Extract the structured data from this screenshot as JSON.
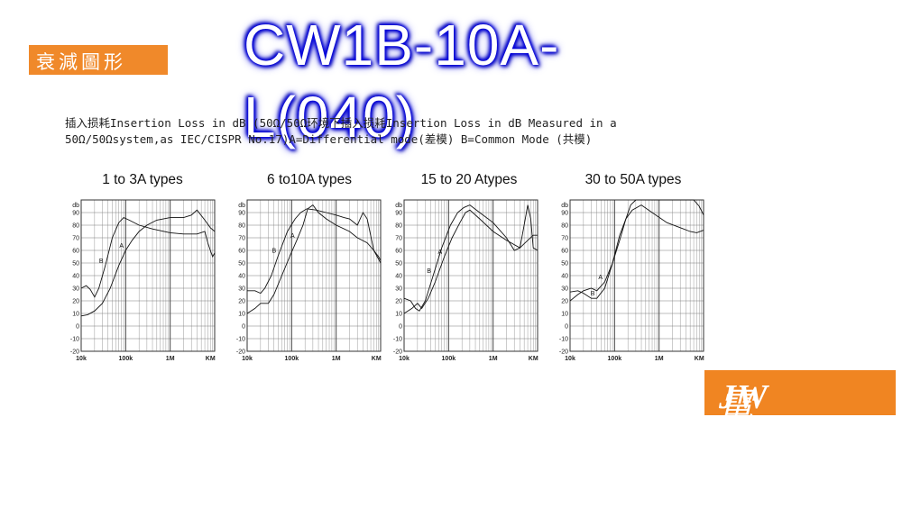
{
  "badge": {
    "label": "衰減圖形"
  },
  "header": {
    "title": "CW1B-10A-L(040)"
  },
  "description": {
    "line1": "插入损耗Insertion Loss in dB (50Ω/50Ω环境下插入损耗Insertion Loss in dB Measured in a",
    "line2": "50Ω/50Ωsystem,as IEC/CISPR No.17)A=Differential mode(差模) B=Common Mode (共模)"
  },
  "logo": {
    "brand": "JW",
    "text": "電世界"
  },
  "colors": {
    "badge": "#f0892a",
    "title_glow": "#0000ff",
    "logo_bg": "#f08522"
  },
  "axis": {
    "y_unit": "db",
    "y_ticks": [
      90,
      80,
      70,
      60,
      50,
      40,
      30,
      20,
      10,
      0,
      -10,
      -20
    ],
    "x_ticks": [
      "10k",
      "100k",
      "1M",
      "KM"
    ]
  },
  "chart_data": [
    {
      "type": "line",
      "title": "1 to 3A types",
      "ylabel": "db",
      "ylim": [
        -20,
        100
      ],
      "x_scale": "log",
      "series": [
        {
          "name": "A",
          "color": "#111111",
          "points": [
            [
              10000,
              8
            ],
            [
              14000,
              9
            ],
            [
              20000,
              12
            ],
            [
              30000,
              18
            ],
            [
              45000,
              30
            ],
            [
              70000,
              48
            ],
            [
              100000,
              60
            ],
            [
              140000,
              68
            ],
            [
              200000,
              75
            ],
            [
              300000,
              80
            ],
            [
              500000,
              84
            ],
            [
              1000000,
              86
            ],
            [
              2000000,
              86
            ],
            [
              3000000,
              88
            ],
            [
              4000000,
              92
            ],
            [
              6000000,
              84
            ],
            [
              8000000,
              78
            ],
            [
              10000000,
              75
            ]
          ]
        },
        {
          "name": "B",
          "color": "#111111",
          "points": [
            [
              10000,
              30
            ],
            [
              13000,
              32
            ],
            [
              16000,
              29
            ],
            [
              20000,
              23
            ],
            [
              25000,
              30
            ],
            [
              35000,
              48
            ],
            [
              50000,
              70
            ],
            [
              70000,
              82
            ],
            [
              90000,
              86
            ],
            [
              120000,
              84
            ],
            [
              200000,
              80
            ],
            [
              400000,
              77
            ],
            [
              1000000,
              74
            ],
            [
              2000000,
              73
            ],
            [
              4000000,
              73
            ],
            [
              6000000,
              75
            ],
            [
              7000000,
              66
            ],
            [
              8000000,
              60
            ],
            [
              9000000,
              55
            ],
            [
              10000000,
              58
            ]
          ]
        }
      ]
    },
    {
      "type": "line",
      "title": "6 to10A types",
      "ylabel": "db",
      "ylim": [
        -20,
        100
      ],
      "x_scale": "log",
      "series": [
        {
          "name": "A",
          "color": "#111111",
          "points": [
            [
              10000,
              10
            ],
            [
              15000,
              14
            ],
            [
              20000,
              18
            ],
            [
              30000,
              18
            ],
            [
              40000,
              25
            ],
            [
              60000,
              40
            ],
            [
              90000,
              55
            ],
            [
              130000,
              68
            ],
            [
              180000,
              80
            ],
            [
              230000,
              93
            ],
            [
              300000,
              96
            ],
            [
              400000,
              90
            ],
            [
              600000,
              85
            ],
            [
              1000000,
              80
            ],
            [
              2000000,
              75
            ],
            [
              3000000,
              70
            ],
            [
              5000000,
              66
            ],
            [
              7000000,
              60
            ],
            [
              9000000,
              55
            ],
            [
              10000000,
              52
            ]
          ]
        },
        {
          "name": "B",
          "color": "#111111",
          "points": [
            [
              10000,
              28
            ],
            [
              15000,
              28
            ],
            [
              20000,
              26
            ],
            [
              25000,
              30
            ],
            [
              35000,
              40
            ],
            [
              50000,
              56
            ],
            [
              80000,
              75
            ],
            [
              120000,
              85
            ],
            [
              160000,
              90
            ],
            [
              220000,
              93
            ],
            [
              350000,
              92
            ],
            [
              600000,
              90
            ],
            [
              1000000,
              88
            ],
            [
              1500000,
              86
            ],
            [
              2000000,
              85
            ],
            [
              3000000,
              80
            ],
            [
              4000000,
              90
            ],
            [
              5000000,
              85
            ],
            [
              7000000,
              60
            ],
            [
              10000000,
              50
            ]
          ]
        }
      ]
    },
    {
      "type": "line",
      "title": "15 to 20 Atypes",
      "ylabel": "db",
      "ylim": [
        -20,
        100
      ],
      "x_scale": "log",
      "series": [
        {
          "name": "A",
          "color": "#111111",
          "points": [
            [
              10000,
              10
            ],
            [
              15000,
              14
            ],
            [
              20000,
              18
            ],
            [
              25000,
              14
            ],
            [
              35000,
              22
            ],
            [
              50000,
              35
            ],
            [
              80000,
              55
            ],
            [
              120000,
              70
            ],
            [
              180000,
              82
            ],
            [
              240000,
              90
            ],
            [
              300000,
              92
            ],
            [
              500000,
              85
            ],
            [
              1000000,
              75
            ],
            [
              2000000,
              68
            ],
            [
              4000000,
              62
            ],
            [
              6000000,
              68
            ],
            [
              8000000,
              72
            ],
            [
              10000000,
              72
            ]
          ]
        },
        {
          "name": "B",
          "color": "#111111",
          "points": [
            [
              10000,
              22
            ],
            [
              14000,
              20
            ],
            [
              18000,
              14
            ],
            [
              22000,
              12
            ],
            [
              30000,
              20
            ],
            [
              45000,
              40
            ],
            [
              70000,
              62
            ],
            [
              110000,
              80
            ],
            [
              160000,
              90
            ],
            [
              220000,
              94
            ],
            [
              300000,
              96
            ],
            [
              500000,
              90
            ],
            [
              1000000,
              82
            ],
            [
              2000000,
              70
            ],
            [
              3000000,
              60
            ],
            [
              4000000,
              62
            ],
            [
              5000000,
              80
            ],
            [
              6000000,
              96
            ],
            [
              7000000,
              85
            ],
            [
              8000000,
              62
            ],
            [
              10000000,
              60
            ]
          ]
        }
      ]
    },
    {
      "type": "line",
      "title": "30 to 50A types",
      "ylabel": "db",
      "ylim": [
        -20,
        100
      ],
      "x_scale": "log",
      "series": [
        {
          "name": "A",
          "color": "#111111",
          "points": [
            [
              10000,
              20
            ],
            [
              15000,
              25
            ],
            [
              20000,
              28
            ],
            [
              30000,
              30
            ],
            [
              40000,
              28
            ],
            [
              60000,
              35
            ],
            [
              90000,
              50
            ],
            [
              130000,
              68
            ],
            [
              180000,
              85
            ],
            [
              230000,
              96
            ],
            [
              300000,
              100
            ],
            [
              1000000,
              100
            ],
            [
              3000000,
              100
            ],
            [
              6000000,
              100
            ],
            [
              8000000,
              95
            ],
            [
              10000000,
              88
            ]
          ]
        },
        {
          "name": "B",
          "color": "#111111",
          "points": [
            [
              10000,
              27
            ],
            [
              15000,
              28
            ],
            [
              20000,
              26
            ],
            [
              30000,
              22
            ],
            [
              40000,
              22
            ],
            [
              60000,
              30
            ],
            [
              90000,
              50
            ],
            [
              130000,
              72
            ],
            [
              180000,
              85
            ],
            [
              250000,
              92
            ],
            [
              400000,
              96
            ],
            [
              700000,
              90
            ],
            [
              1500000,
              82
            ],
            [
              3000000,
              78
            ],
            [
              5000000,
              75
            ],
            [
              7000000,
              74
            ],
            [
              10000000,
              76
            ]
          ]
        }
      ]
    }
  ]
}
